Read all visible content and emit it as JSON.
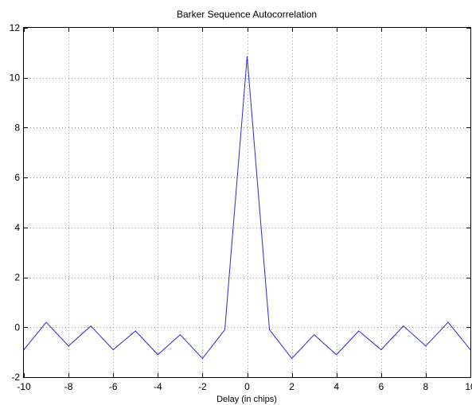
{
  "chart_data": {
    "type": "line",
    "title": "Barker Sequence Autocorrelation",
    "xlabel": "Delay (in chips)",
    "ylabel": "",
    "xlim": [
      -10,
      10
    ],
    "ylim": [
      -2,
      12
    ],
    "x_ticks": [
      -10,
      -8,
      -6,
      -4,
      -2,
      0,
      2,
      4,
      6,
      8,
      10
    ],
    "y_ticks": [
      -2,
      0,
      2,
      4,
      6,
      8,
      10,
      12
    ],
    "x_tick_labels": [
      "-10",
      "-8",
      "-6",
      "-4",
      "-2",
      "0",
      "2",
      "4",
      "6",
      "8",
      "10"
    ],
    "y_tick_labels": [
      "-2",
      "0",
      "2",
      "4",
      "6",
      "8",
      "10",
      "12"
    ],
    "grid": true,
    "legend": false,
    "series": [
      {
        "color": "#2b2bd6",
        "x": [
          -10,
          -9,
          -8,
          -7,
          -6,
          -5,
          -4,
          -3,
          -2,
          -1,
          0,
          1,
          2,
          3,
          4,
          5,
          6,
          7,
          8,
          9,
          10
        ],
        "y": [
          -0.9,
          0.2,
          -0.75,
          0.05,
          -0.9,
          -0.15,
          -1.1,
          -0.3,
          -1.25,
          -0.1,
          10.85,
          -0.1,
          -1.25,
          -0.3,
          -1.1,
          -0.15,
          -0.9,
          0.05,
          -0.75,
          0.2,
          -0.9
        ]
      }
    ]
  }
}
